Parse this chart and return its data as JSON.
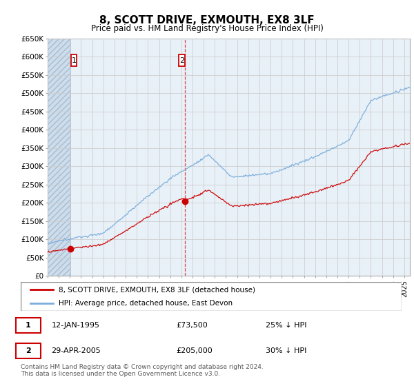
{
  "title": "8, SCOTT DRIVE, EXMOUTH, EX8 3LF",
  "subtitle": "Price paid vs. HM Land Registry's House Price Index (HPI)",
  "ylim": [
    0,
    650000
  ],
  "yticks": [
    0,
    50000,
    100000,
    150000,
    200000,
    250000,
    300000,
    350000,
    400000,
    450000,
    500000,
    550000,
    600000,
    650000
  ],
  "ytick_labels": [
    "£0",
    "£50K",
    "£100K",
    "£150K",
    "£200K",
    "£250K",
    "£300K",
    "£350K",
    "£400K",
    "£450K",
    "£500K",
    "£550K",
    "£600K",
    "£650K"
  ],
  "xlim_start": 1993.0,
  "xlim_end": 2025.5,
  "hatch_end_year": 1995.04,
  "vline_year": 2005.29,
  "t1_year": 1995.04,
  "t1_price": 73500,
  "t2_year": 2005.29,
  "t2_price": 205000,
  "red_line_color": "#cc0000",
  "blue_line_color": "#7aaddc",
  "grid_color": "#cccccc",
  "legend_label_red": "8, SCOTT DRIVE, EXMOUTH, EX8 3LF (detached house)",
  "legend_label_blue": "HPI: Average price, detached house, East Devon",
  "footer": "Contains HM Land Registry data © Crown copyright and database right 2024.\nThis data is licensed under the Open Government Licence v3.0.",
  "background_color": "#ffffff",
  "plot_bg_color": "#eef4fb"
}
